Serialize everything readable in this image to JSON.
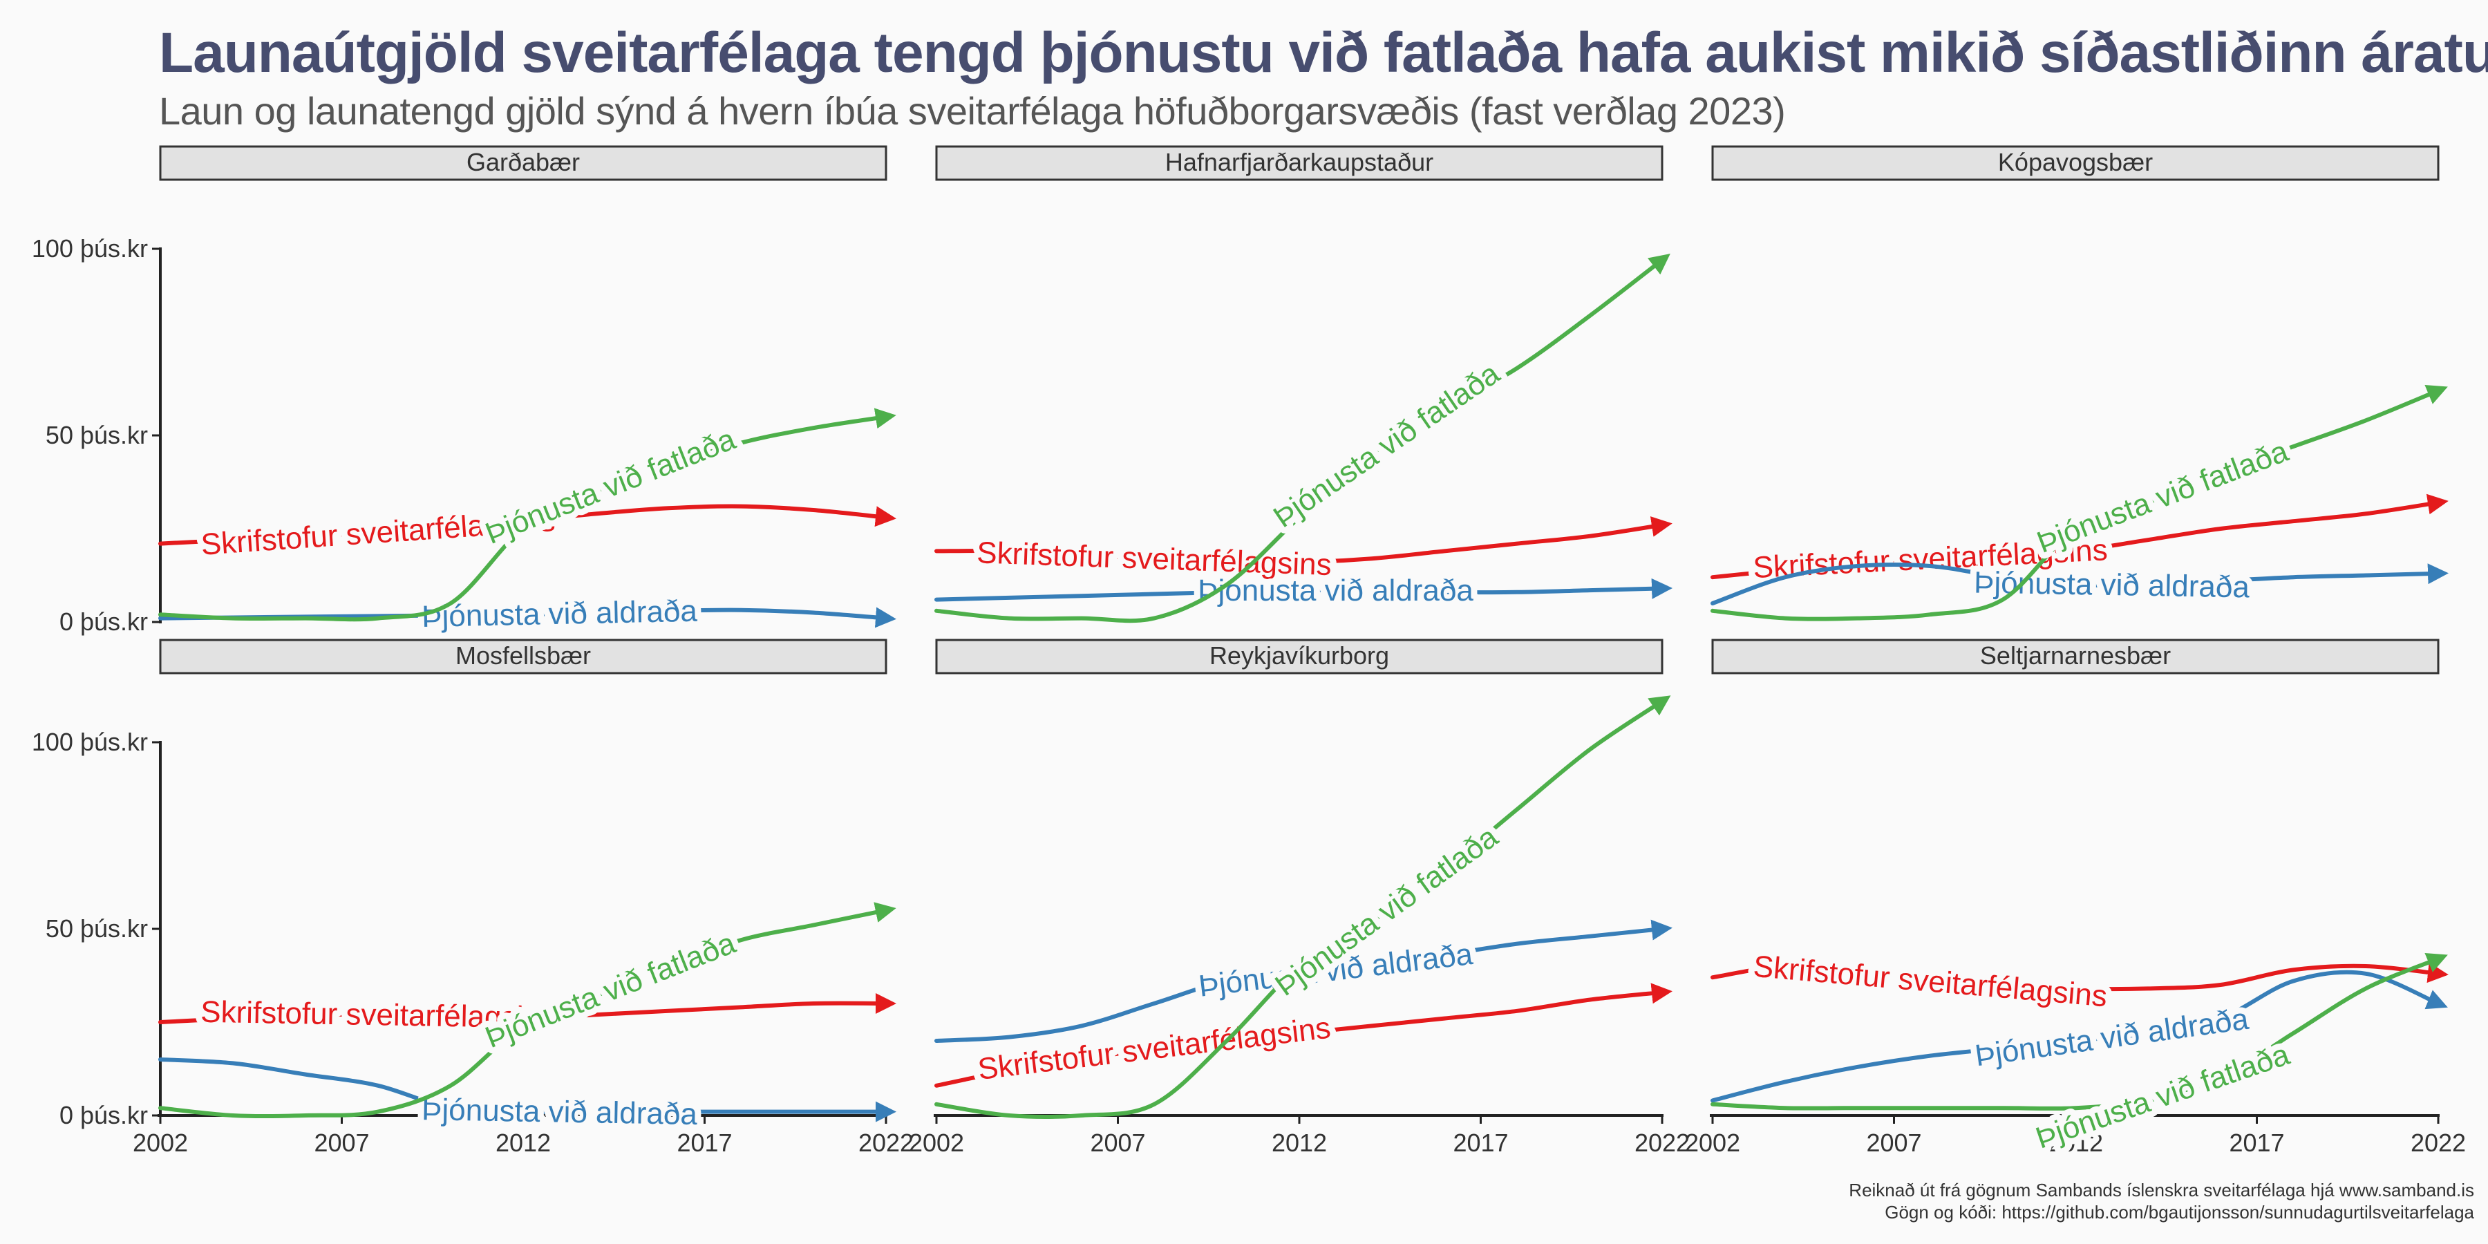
{
  "title": "Launaútgjöld sveitarfélaga tengd þjónustu við fatlaða hafa aukist mikið síðastliðinn áratug",
  "subtitle": "Laun og launatengd gjöld sýnd á hvern íbúa sveitarfélaga höfuðborgarsvæðis (fast verðlag 2023)",
  "caption": [
    "Reiknað út frá gögnum Sambands íslenskra sveitarfélaga hjá www.samband.is",
    "Gögn og kóði: https://github.com/bgautijonsson/sunnudagurtilsveitarfelaga"
  ],
  "chart_data": {
    "type": "line",
    "layout": "facet 2x3",
    "x_ticks": [
      "2002",
      "2007",
      "2012",
      "2017",
      "2022"
    ],
    "xlim": [
      2002,
      2022
    ],
    "y_ticks": [
      "0 þús.kr",
      "50 þús.kr",
      "100 þús.kr"
    ],
    "y_tick_values": [
      0,
      50,
      100
    ],
    "ylim": [
      0,
      100
    ],
    "grid": false,
    "legend": "inline labels",
    "series_names": [
      "Skrifstofur sveitarfélagsins",
      "Þjónusta við aldraða",
      "Þjónusta við fatlaða"
    ],
    "series_colors": [
      "#e41a1c",
      "#377eb8",
      "#4daf4a"
    ],
    "x": [
      2002,
      2004,
      2006,
      2008,
      2010,
      2012,
      2014,
      2016,
      2018,
      2020,
      2022
    ],
    "facets": [
      {
        "name": "Garðabær",
        "series": [
          {
            "values": [
              21,
              22,
              23,
              24,
              25,
              27,
              29,
              30.5,
              31,
              30,
              28
            ]
          },
          {
            "values": [
              1,
              1.2,
              1.4,
              1.6,
              1.8,
              2,
              2.5,
              3,
              3.2,
              2.5,
              1
            ]
          },
          {
            "values": [
              2,
              1,
              1,
              1,
              5,
              25,
              35,
              42,
              48,
              52,
              55
            ]
          }
        ]
      },
      {
        "name": "Hafnarfjarðarkaupstaður",
        "series": [
          {
            "values": [
              19,
              19,
              18,
              17,
              16,
              16,
              17,
              19,
              21,
              23,
              26
            ]
          },
          {
            "values": [
              6,
              6.5,
              7,
              7.5,
              8,
              8.5,
              8.5,
              8,
              8,
              8.5,
              9
            ]
          },
          {
            "values": [
              3,
              1,
              1,
              1,
              10,
              28,
              45,
              57,
              68,
              82,
              97
            ]
          }
        ]
      },
      {
        "name": "Kópavogsbær",
        "series": [
          {
            "values": [
              12,
              14,
              16,
              17,
              17,
              19,
              22,
              25,
              27,
              29,
              32
            ]
          },
          {
            "values": [
              5,
              12,
              15,
              15,
              12,
              10,
              10,
              11,
              12,
              12.5,
              13
            ]
          },
          {
            "values": [
              3,
              1,
              1,
              2,
              6,
              25,
              32,
              40,
              47,
              54,
              62
            ]
          }
        ]
      },
      {
        "name": "Mosfellsbær",
        "series": [
          {
            "values": [
              25,
              26,
              27,
              27,
              27,
              26,
              27,
              28,
              29,
              30,
              30
            ]
          },
          {
            "values": [
              15,
              14,
              11,
              8,
              2,
              1,
              1,
              1,
              1,
              1,
              1
            ]
          },
          {
            "values": [
              2,
              0,
              0,
              1,
              8,
              24,
              32,
              40,
              47,
              51,
              55
            ]
          }
        ]
      },
      {
        "name": "Reykjavíkurborg",
        "series": [
          {
            "values": [
              8,
              12,
              15,
              18,
              20,
              22,
              24,
              26,
              28,
              31,
              33
            ]
          },
          {
            "values": [
              20,
              21,
              24,
              30,
              36,
              38,
              40,
              43,
              46,
              48,
              50
            ]
          },
          {
            "values": [
              3,
              0,
              0,
              3,
              20,
              40,
              52,
              66,
              82,
              98,
              111
            ]
          }
        ]
      },
      {
        "name": "Seltjarnarnesbær",
        "series": [
          {
            "values": [
              37,
              40,
              39,
              36,
              35,
              34,
              34,
              35,
              39,
              40,
              38
            ]
          },
          {
            "values": [
              4,
              9,
              13,
              16,
              18,
              20,
              22,
              26,
              36,
              38,
              30
            ]
          },
          {
            "values": [
              3,
              2,
              2,
              2,
              2,
              2,
              4,
              10,
              22,
              34,
              42
            ]
          }
        ]
      }
    ]
  }
}
